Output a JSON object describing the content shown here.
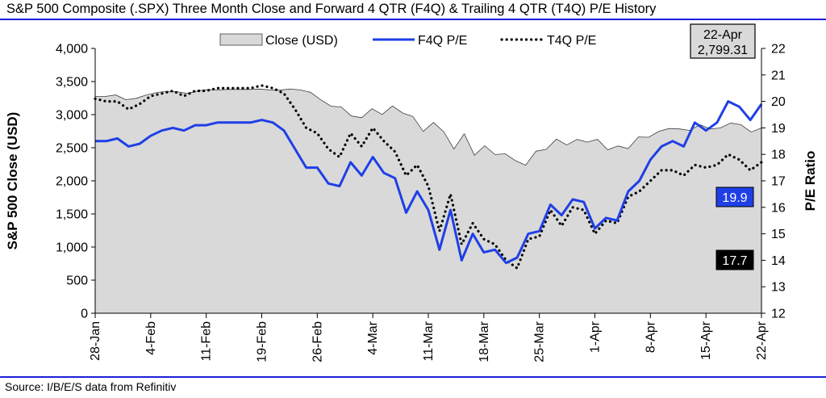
{
  "title": "S&P 500 Composite (.SPX) Three Month Close and Forward 4 QTR (F4Q) & Trailing 4 QTR (T4Q) P/E History",
  "source": "Source: I/B/E/S data from Refinitiv",
  "chart_data": {
    "type": "area",
    "ylabel": "S&P 500 Close (USD)",
    "y2label": "P/E Ratio",
    "ylim": [
      0,
      4000
    ],
    "y2lim": [
      12,
      22
    ],
    "y_ticks": [
      "0",
      "500",
      "1,000",
      "1,500",
      "2,000",
      "2,500",
      "3,000",
      "3,500",
      "4,000"
    ],
    "y2_ticks": [
      "12",
      "13",
      "14",
      "15",
      "16",
      "17",
      "18",
      "19",
      "20",
      "21",
      "22"
    ],
    "x_ticks": [
      "28-Jan",
      "4-Feb",
      "11-Feb",
      "19-Feb",
      "26-Feb",
      "4-Mar",
      "11-Mar",
      "18-Mar",
      "25-Mar",
      "1-Apr",
      "8-Apr",
      "15-Apr",
      "22-Apr"
    ],
    "grid": false,
    "legend": {
      "position": "top",
      "entries": [
        "Close (USD)",
        "F4Q P/E",
        "T4Q P/E"
      ]
    },
    "colors": {
      "close_fill": "#d9d9d9",
      "close_line": "#404040",
      "f4q": "#1f3fe6",
      "t4q": "#000000"
    },
    "annotation": {
      "date": "22-Apr",
      "value": "2,799.31"
    },
    "last_labels": {
      "f4q": "19.9",
      "t4q": "17.7"
    },
    "series": [
      {
        "name": "Close (USD)",
        "axis": "left",
        "values": [
          3276,
          3274,
          3298,
          3226,
          3246,
          3298,
          3334,
          3352,
          3345,
          3320,
          3357,
          3379,
          3373,
          3380,
          3381,
          3380,
          3386,
          3374,
          3370,
          3386,
          3373,
          3338,
          3225,
          3128,
          3116,
          2979,
          2954,
          3090,
          3003,
          3130,
          3024,
          2972,
          2746,
          2882,
          2741,
          2480,
          2711,
          2386,
          2530,
          2398,
          2409,
          2305,
          2237,
          2447,
          2475,
          2630,
          2541,
          2626,
          2585,
          2627,
          2470,
          2527,
          2488,
          2663,
          2659,
          2749,
          2790,
          2784,
          2761,
          2847,
          2783,
          2800,
          2875,
          2848,
          2737,
          2799
        ]
      },
      {
        "name": "F4Q P/E",
        "axis": "right",
        "values": [
          18.5,
          18.5,
          18.6,
          18.3,
          18.4,
          18.7,
          18.9,
          19.0,
          18.9,
          19.1,
          19.1,
          19.2,
          19.2,
          19.2,
          19.2,
          19.3,
          19.2,
          18.9,
          18.2,
          17.5,
          17.5,
          16.9,
          16.8,
          17.7,
          17.2,
          17.9,
          17.3,
          17.1,
          15.8,
          16.6,
          15.9,
          14.4,
          15.9,
          14.0,
          15.0,
          14.3,
          14.4,
          13.9,
          14.1,
          15.0,
          15.1,
          16.1,
          15.7,
          16.3,
          16.2,
          15.2,
          15.6,
          15.5,
          16.6,
          17.0,
          17.8,
          18.3,
          18.5,
          18.3,
          19.2,
          18.9,
          19.2,
          20.0,
          19.8,
          19.3,
          19.9
        ]
      },
      {
        "name": "T4Q P/E",
        "axis": "right",
        "values": [
          20.1,
          20.0,
          20.0,
          19.7,
          19.9,
          20.2,
          20.3,
          20.4,
          20.2,
          20.4,
          20.4,
          20.5,
          20.5,
          20.5,
          20.5,
          20.6,
          20.5,
          20.3,
          19.7,
          19.0,
          18.8,
          18.2,
          17.9,
          18.8,
          18.3,
          19.0,
          18.5,
          18.1,
          17.2,
          17.6,
          16.8,
          15.1,
          16.5,
          14.6,
          15.4,
          14.8,
          14.6,
          14.0,
          13.7,
          14.8,
          14.9,
          15.9,
          15.3,
          16.0,
          15.9,
          15.0,
          15.5,
          15.4,
          16.4,
          16.6,
          17.0,
          17.4,
          17.4,
          17.2,
          17.6,
          17.5,
          17.6,
          18.0,
          17.8,
          17.4,
          17.7
        ]
      }
    ]
  }
}
